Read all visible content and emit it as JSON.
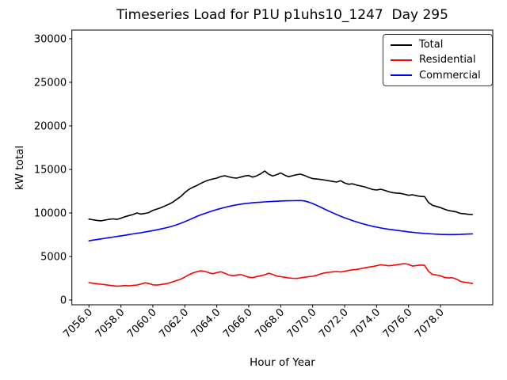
{
  "figure": {
    "background": "#ffffff"
  },
  "legend": {
    "entries": [
      {
        "label": "Total"
      },
      {
        "label": "Residential"
      },
      {
        "label": "Commercial"
      }
    ]
  },
  "chart_data": {
    "type": "line",
    "title": "Timeseries Load for P1U p1uhs10_1247  Day 295",
    "xlabel": "Hour of Year",
    "ylabel": "kW total",
    "grid": false,
    "legend_position": "upper right",
    "xlim": [
      7054.93,
      7081.27
    ],
    "ylim": [
      -545,
      31000
    ],
    "x_tick_values": [
      7056,
      7058,
      7060,
      7062,
      7064,
      7066,
      7068,
      7070,
      7072,
      7074,
      7076,
      7078
    ],
    "x_tick_labels": [
      "7056.0",
      "7058.0",
      "7060.0",
      "7062.0",
      "7064.0",
      "7066.0",
      "7068.0",
      "7070.0",
      "7072.0",
      "7074.0",
      "7076.0",
      "7078.0"
    ],
    "y_tick_values": [
      0,
      5000,
      10000,
      15000,
      20000,
      25000,
      30000
    ],
    "y_tick_labels": [
      "0",
      "5000",
      "10000",
      "15000",
      "20000",
      "25000",
      "30000"
    ],
    "x": [
      7056.0,
      7056.25,
      7056.5,
      7056.75,
      7057.0,
      7057.25,
      7057.5,
      7057.75,
      7058.0,
      7058.25,
      7058.5,
      7058.75,
      7059.0,
      7059.25,
      7059.5,
      7059.75,
      7060.0,
      7060.25,
      7060.5,
      7060.75,
      7061.0,
      7061.25,
      7061.5,
      7061.75,
      7062.0,
      7062.25,
      7062.5,
      7062.75,
      7063.0,
      7063.25,
      7063.5,
      7063.75,
      7064.0,
      7064.25,
      7064.5,
      7064.75,
      7065.0,
      7065.25,
      7065.5,
      7065.75,
      7066.0,
      7066.25,
      7066.5,
      7066.75,
      7067.0,
      7067.25,
      7067.5,
      7067.75,
      7068.0,
      7068.25,
      7068.5,
      7068.75,
      7069.0,
      7069.25,
      7069.5,
      7069.75,
      7070.0,
      7070.25,
      7070.5,
      7070.75,
      7071.0,
      7071.25,
      7071.5,
      7071.75,
      7072.0,
      7072.25,
      7072.5,
      7072.75,
      7073.0,
      7073.25,
      7073.5,
      7073.75,
      7074.0,
      7074.25,
      7074.5,
      7074.75,
      7075.0,
      7075.25,
      7075.5,
      7075.75,
      7076.0,
      7076.25,
      7076.5,
      7076.75,
      7077.0,
      7077.25,
      7077.5,
      7077.75,
      7078.0,
      7078.25,
      7078.5,
      7078.75,
      7079.0,
      7079.25,
      7079.5,
      7079.75,
      7080.0
    ],
    "series": [
      {
        "name": "Total",
        "color": "#000000",
        "values": [
          9300,
          9220,
          9150,
          9100,
          9180,
          9260,
          9320,
          9260,
          9400,
          9560,
          9700,
          9820,
          10000,
          9870,
          9950,
          10050,
          10300,
          10450,
          10600,
          10800,
          11000,
          11250,
          11570,
          11900,
          12340,
          12700,
          12950,
          13150,
          13400,
          13610,
          13780,
          13900,
          14000,
          14180,
          14270,
          14150,
          14050,
          14000,
          14120,
          14250,
          14300,
          14120,
          14260,
          14500,
          14820,
          14450,
          14250,
          14400,
          14600,
          14350,
          14160,
          14280,
          14390,
          14455,
          14300,
          14100,
          13950,
          13900,
          13850,
          13780,
          13700,
          13620,
          13550,
          13700,
          13450,
          13300,
          13350,
          13200,
          13100,
          13000,
          12850,
          12700,
          12640,
          12730,
          12600,
          12450,
          12340,
          12280,
          12250,
          12150,
          12030,
          12090,
          11980,
          11900,
          11880,
          11200,
          10880,
          10750,
          10620,
          10430,
          10280,
          10200,
          10120,
          9950,
          9900,
          9850,
          9820
        ]
      },
      {
        "name": "Residential",
        "color": "#ff0000",
        "values": [
          2000,
          1930,
          1870,
          1820,
          1760,
          1700,
          1650,
          1600,
          1620,
          1660,
          1630,
          1680,
          1730,
          1830,
          1970,
          1900,
          1750,
          1720,
          1780,
          1850,
          1950,
          2100,
          2250,
          2400,
          2650,
          2900,
          3100,
          3250,
          3360,
          3280,
          3150,
          3020,
          3150,
          3250,
          3080,
          2880,
          2800,
          2870,
          2920,
          2780,
          2620,
          2570,
          2700,
          2790,
          2900,
          3080,
          2950,
          2760,
          2680,
          2620,
          2540,
          2500,
          2480,
          2550,
          2620,
          2680,
          2730,
          2850,
          3000,
          3120,
          3180,
          3240,
          3270,
          3230,
          3300,
          3400,
          3470,
          3520,
          3600,
          3700,
          3780,
          3850,
          3950,
          4050,
          4000,
          3940,
          3980,
          4050,
          4120,
          4180,
          4100,
          3900,
          3960,
          4020,
          3980,
          3300,
          2950,
          2870,
          2780,
          2600,
          2540,
          2560,
          2400,
          2150,
          2050,
          1980,
          1900
        ]
      },
      {
        "name": "Commercial",
        "color": "#0000ff",
        "values": [
          6800,
          6880,
          6950,
          7020,
          7090,
          7160,
          7230,
          7300,
          7370,
          7440,
          7520,
          7590,
          7660,
          7730,
          7810,
          7890,
          7970,
          8060,
          8160,
          8260,
          8370,
          8500,
          8650,
          8820,
          9000,
          9200,
          9400,
          9600,
          9780,
          9950,
          10100,
          10250,
          10390,
          10520,
          10640,
          10750,
          10850,
          10940,
          11010,
          11070,
          11120,
          11170,
          11210,
          11240,
          11270,
          11300,
          11330,
          11350,
          11370,
          11390,
          11400,
          11410,
          11420,
          11430,
          11380,
          11250,
          11080,
          10880,
          10670,
          10450,
          10230,
          10020,
          9820,
          9630,
          9450,
          9280,
          9120,
          8970,
          8830,
          8700,
          8580,
          8470,
          8370,
          8280,
          8200,
          8130,
          8070,
          8010,
          7950,
          7890,
          7830,
          7780,
          7730,
          7690,
          7650,
          7620,
          7590,
          7560,
          7540,
          7530,
          7520,
          7520,
          7530,
          7540,
          7560,
          7580,
          7600
        ]
      }
    ]
  }
}
